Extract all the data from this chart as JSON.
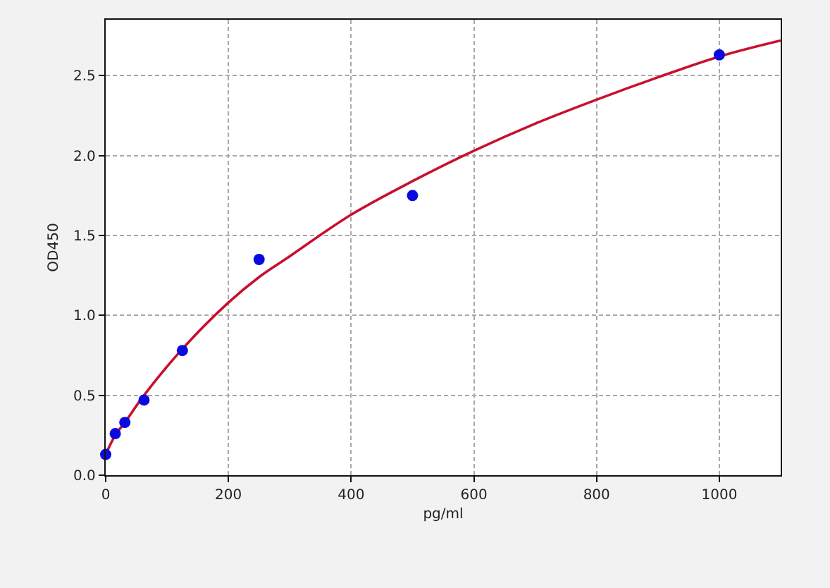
{
  "chart_data": {
    "type": "scatter",
    "xlabel": "pg/ml",
    "ylabel": "OD450",
    "xlim": [
      0,
      1100
    ],
    "xticks": [
      0,
      200,
      400,
      600,
      800,
      1000
    ],
    "ylim": [
      0,
      2.85
    ],
    "yticks": [
      {
        "value": 0,
        "label": "0.0"
      },
      {
        "value": 0.5,
        "label": "0.5"
      },
      {
        "value": 1,
        "label": "1.0"
      },
      {
        "value": 1.5,
        "label": "1.5"
      },
      {
        "value": 2,
        "label": "2.0"
      },
      {
        "value": 2.5,
        "label": "2.5"
      }
    ],
    "grid": true,
    "marker": "circle",
    "series": [
      {
        "type": "line",
        "color": "#c8102e",
        "line_style": "solid",
        "marker": "none",
        "x": [
          0,
          15.6,
          31.25,
          62.5,
          125,
          200,
          250,
          300,
          400,
          500,
          600,
          700,
          800,
          900,
          1000,
          1100
        ],
        "values": [
          0.13,
          0.25,
          0.33,
          0.5,
          0.79,
          1.08,
          1.24,
          1.37,
          1.63,
          1.84,
          2.03,
          2.2,
          2.35,
          2.49,
          2.62,
          2.72
        ]
      },
      {
        "color": "#0a0ae0",
        "x": [
          0,
          15.6,
          31.25,
          62.5,
          125,
          250,
          500,
          1000
        ],
        "values": [
          0.13,
          0.26,
          0.33,
          0.47,
          0.78,
          1.35,
          1.75,
          2.63
        ]
      }
    ]
  }
}
